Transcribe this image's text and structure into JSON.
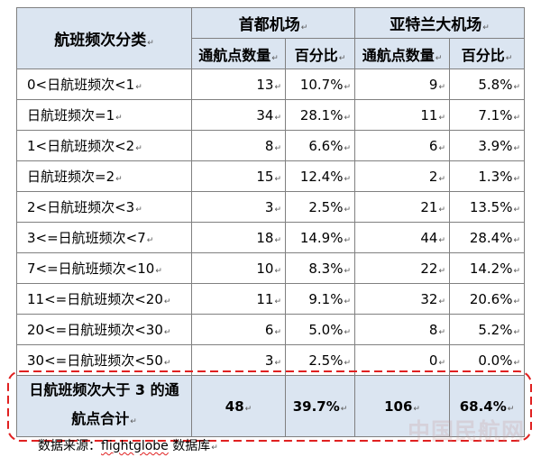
{
  "table": {
    "category_header": "航班频次分类",
    "groups": [
      {
        "name": "首都机场",
        "count_header": "通航点数量",
        "percent_header": "百分比"
      },
      {
        "name": "亚特兰大机场",
        "count_header": "通航点数量",
        "percent_header": "百分比"
      }
    ],
    "rows": [
      {
        "category": "0<日航班频次<1",
        "capital_count": 13,
        "capital_percent": "10.7%",
        "atlanta_count": 9,
        "atlanta_percent": "5.8%"
      },
      {
        "category": "日航班频次=1",
        "capital_count": 34,
        "capital_percent": "28.1%",
        "atlanta_count": 11,
        "atlanta_percent": "7.1%"
      },
      {
        "category": "1<日航班频次<2",
        "capital_count": 8,
        "capital_percent": "6.6%",
        "atlanta_count": 6,
        "atlanta_percent": "3.9%"
      },
      {
        "category": "日航班频次=2",
        "capital_count": 15,
        "capital_percent": "12.4%",
        "atlanta_count": 2,
        "atlanta_percent": "1.3%"
      },
      {
        "category": "2<日航班频次<3",
        "capital_count": 3,
        "capital_percent": "2.5%",
        "atlanta_count": 21,
        "atlanta_percent": "13.5%"
      },
      {
        "category": "3<=日航班频次<7",
        "capital_count": 18,
        "capital_percent": "14.9%",
        "atlanta_count": 44,
        "atlanta_percent": "28.4%"
      },
      {
        "category": "7<=日航班频次<10",
        "capital_count": 10,
        "capital_percent": "8.3%",
        "atlanta_count": 22,
        "atlanta_percent": "14.2%"
      },
      {
        "category": "11<=日航班频次<20",
        "capital_count": 11,
        "capital_percent": "9.1%",
        "atlanta_count": 32,
        "atlanta_percent": "20.6%"
      },
      {
        "category": "20<=日航班频次<30",
        "capital_count": 6,
        "capital_percent": "5.0%",
        "atlanta_count": 8,
        "atlanta_percent": "5.2%"
      },
      {
        "category": "30<=日航班频次<50",
        "capital_count": 3,
        "capital_percent": "2.5%",
        "atlanta_count": 0,
        "atlanta_percent": "0.0%"
      }
    ],
    "total": {
      "category": "日航班频次大于 3 的通航点合计",
      "capital_count": 48,
      "capital_percent": "39.7%",
      "atlanta_count": 106,
      "atlanta_percent": "68.4%"
    }
  },
  "source_note": {
    "label": "数据来源：",
    "name": "flightglobe",
    "suffix": "数据库"
  },
  "watermark": "中国民航网",
  "colors": {
    "header_fill": "#dbe5f1",
    "grid_line": "#808080",
    "highlight_outline": "#e02020",
    "spellcheck_underline": "#e02020"
  }
}
